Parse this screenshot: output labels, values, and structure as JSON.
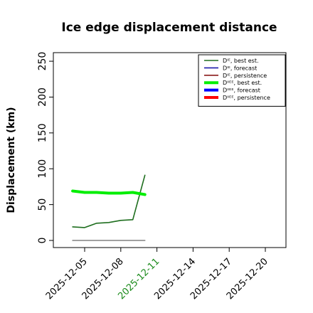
{
  "chart_data": {
    "type": "line",
    "title": "Ice edge displacement distance",
    "ylabel": "Displacement (km)",
    "xlabel": "",
    "xlim": [
      "2025-12-02",
      "2026-01-22"
    ],
    "ylim": [
      0,
      260
    ],
    "y_ticks": [
      0,
      50,
      100,
      150,
      200,
      250
    ],
    "x_ticks": [
      {
        "date": "2025-12-05",
        "label": "2025-12-05",
        "color": "#000000"
      },
      {
        "date": "2025-12-08",
        "label": "2025-12-08",
        "color": "#000000"
      },
      {
        "date": "2025-12-11",
        "label": "2025-12-11",
        "color": "#1a8a1a"
      },
      {
        "date": "2025-12-14",
        "label": "2025-12-14",
        "color": "#000000"
      },
      {
        "date": "2025-12-17",
        "label": "2025-12-17",
        "color": "#000000"
      },
      {
        "date": "2025-12-20",
        "label": "2025-12-20",
        "color": "#000000"
      }
    ],
    "grid": false,
    "legend_position": "top-right",
    "series": [
      {
        "name": "Dᴵᴱ, best est.",
        "color": "#1e6e1e",
        "width": 1.6,
        "points": [
          [
            "2025-12-04",
            19
          ],
          [
            "2025-12-05",
            18
          ],
          [
            "2025-12-06",
            24
          ],
          [
            "2025-12-07",
            25
          ],
          [
            "2025-12-08",
            28
          ],
          [
            "2025-12-09",
            29
          ],
          [
            "2025-12-10",
            91
          ]
        ]
      },
      {
        "name": "Dᴵᴱ, forecast",
        "color": "#1a1aaa",
        "width": 1.6,
        "points": []
      },
      {
        "name": "Dᴵᴱ, persistence",
        "color": "#8b1a1a",
        "width": 1.6,
        "points": []
      },
      {
        "name": "Dᴵᴵᴱᴱ, best est.",
        "color": "#00ee00",
        "width": 4,
        "points": [
          [
            "2025-12-04",
            69
          ],
          [
            "2025-12-05",
            67
          ],
          [
            "2025-12-06",
            67
          ],
          [
            "2025-12-07",
            66
          ],
          [
            "2025-12-08",
            66
          ],
          [
            "2025-12-09",
            67
          ],
          [
            "2025-12-10",
            64
          ]
        ]
      },
      {
        "name": "Dᴵᴵᴱᴱ, forecast",
        "color": "#0000ff",
        "width": 4,
        "points": []
      },
      {
        "name": "Dᴵᴵᴱᴱ, persistence",
        "color": "#ff0000",
        "width": 4,
        "points": []
      },
      {
        "name": "",
        "color": "#808080",
        "width": 1.6,
        "points": [
          [
            "2025-12-04",
            0
          ],
          [
            "2025-12-10",
            0
          ]
        ]
      }
    ]
  }
}
